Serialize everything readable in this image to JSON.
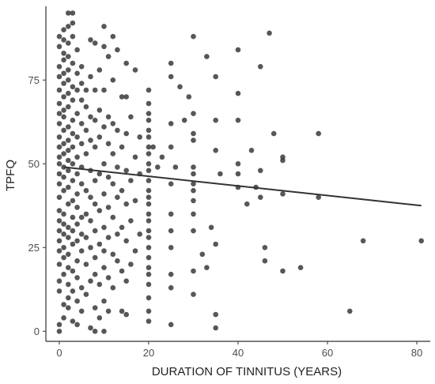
{
  "chart_data": {
    "type": "scatter",
    "xlabel": "DURATION OF TINNITUS (YEARS)",
    "ylabel": "TPFQ",
    "xlim": [
      -3,
      83
    ],
    "ylim": [
      -3,
      97
    ],
    "x_ticks": [
      0,
      20,
      40,
      60,
      80
    ],
    "y_ticks": [
      0,
      25,
      50,
      75
    ],
    "grid": false,
    "colors": {
      "point": "#3a3a3a",
      "trend_line": "#333333",
      "axis": "#333333"
    },
    "trend_line": {
      "x": [
        1,
        81
      ],
      "y": [
        49,
        37.5
      ]
    },
    "points": [
      [
        0,
        0
      ],
      [
        0,
        2
      ],
      [
        0,
        12
      ],
      [
        0,
        15
      ],
      [
        0,
        20
      ],
      [
        0,
        24
      ],
      [
        0,
        27
      ],
      [
        0,
        30
      ],
      [
        0,
        33
      ],
      [
        0,
        36
      ],
      [
        0,
        40
      ],
      [
        0,
        44
      ],
      [
        0,
        47
      ],
      [
        0,
        50
      ],
      [
        0,
        52
      ],
      [
        0,
        55
      ],
      [
        0,
        58
      ],
      [
        0,
        62
      ],
      [
        0,
        65
      ],
      [
        0,
        68
      ],
      [
        0,
        72
      ],
      [
        0,
        76
      ],
      [
        0,
        79
      ],
      [
        0,
        85
      ],
      [
        0,
        88
      ],
      [
        1,
        4
      ],
      [
        1,
        8
      ],
      [
        1,
        17
      ],
      [
        1,
        22
      ],
      [
        1,
        25
      ],
      [
        1,
        29
      ],
      [
        1,
        32
      ],
      [
        1,
        35
      ],
      [
        1,
        42
      ],
      [
        1,
        46
      ],
      [
        1,
        49
      ],
      [
        1,
        53
      ],
      [
        1,
        56
      ],
      [
        1,
        60
      ],
      [
        1,
        64
      ],
      [
        1,
        66
      ],
      [
        1,
        70
      ],
      [
        1,
        74
      ],
      [
        1,
        77
      ],
      [
        1,
        81
      ],
      [
        1,
        83
      ],
      [
        1,
        87
      ],
      [
        1,
        90
      ],
      [
        2,
        7
      ],
      [
        2,
        10
      ],
      [
        2,
        14
      ],
      [
        2,
        19
      ],
      [
        2,
        23
      ],
      [
        2,
        28
      ],
      [
        2,
        31
      ],
      [
        2,
        38
      ],
      [
        2,
        43
      ],
      [
        2,
        48
      ],
      [
        2,
        51
      ],
      [
        2,
        54
      ],
      [
        2,
        57
      ],
      [
        2,
        61
      ],
      [
        2,
        67
      ],
      [
        2,
        71
      ],
      [
        2,
        75
      ],
      [
        2,
        78
      ],
      [
        2,
        82
      ],
      [
        2,
        86
      ],
      [
        2,
        91
      ],
      [
        2,
        95
      ],
      [
        3,
        3
      ],
      [
        3,
        12
      ],
      [
        3,
        18
      ],
      [
        3,
        26
      ],
      [
        3,
        30
      ],
      [
        3,
        34
      ],
      [
        3,
        39
      ],
      [
        3,
        45
      ],
      [
        3,
        50
      ],
      [
        3,
        55
      ],
      [
        3,
        59
      ],
      [
        3,
        63
      ],
      [
        3,
        69
      ],
      [
        3,
        73
      ],
      [
        3,
        80
      ],
      [
        3,
        88
      ],
      [
        3,
        92
      ],
      [
        3,
        95
      ],
      [
        4,
        2
      ],
      [
        4,
        9
      ],
      [
        4,
        16
      ],
      [
        4,
        21
      ],
      [
        4,
        27
      ],
      [
        4,
        32
      ],
      [
        4,
        37
      ],
      [
        4,
        41
      ],
      [
        4,
        47
      ],
      [
        4,
        52
      ],
      [
        4,
        58
      ],
      [
        4,
        65
      ],
      [
        4,
        72
      ],
      [
        4,
        77
      ],
      [
        4,
        84
      ],
      [
        5,
        6
      ],
      [
        5,
        13
      ],
      [
        5,
        24
      ],
      [
        5,
        29
      ],
      [
        5,
        34
      ],
      [
        5,
        44
      ],
      [
        5,
        49
      ],
      [
        5,
        56
      ],
      [
        5,
        62
      ],
      [
        5,
        69
      ],
      [
        5,
        74
      ],
      [
        5,
        79
      ],
      [
        6,
        11
      ],
      [
        6,
        20
      ],
      [
        6,
        28
      ],
      [
        6,
        35
      ],
      [
        6,
        42
      ],
      [
        6,
        53
      ],
      [
        6,
        60
      ],
      [
        6,
        67
      ],
      [
        6,
        72
      ],
      [
        7,
        1
      ],
      [
        7,
        15
      ],
      [
        7,
        25
      ],
      [
        7,
        33
      ],
      [
        7,
        40
      ],
      [
        7,
        48
      ],
      [
        7,
        57
      ],
      [
        7,
        64
      ],
      [
        7,
        76
      ],
      [
        7,
        87
      ],
      [
        8,
        0
      ],
      [
        8,
        7
      ],
      [
        8,
        17
      ],
      [
        8,
        22
      ],
      [
        8,
        30
      ],
      [
        8,
        38
      ],
      [
        8,
        45
      ],
      [
        8,
        55
      ],
      [
        8,
        63
      ],
      [
        8,
        72
      ],
      [
        8,
        86
      ],
      [
        9,
        4
      ],
      [
        9,
        14
      ],
      [
        9,
        26
      ],
      [
        9,
        36
      ],
      [
        9,
        47
      ],
      [
        9,
        58
      ],
      [
        9,
        66
      ],
      [
        9,
        78
      ],
      [
        10,
        0
      ],
      [
        10,
        9
      ],
      [
        10,
        19
      ],
      [
        10,
        24
      ],
      [
        10,
        31
      ],
      [
        10,
        41
      ],
      [
        10,
        50
      ],
      [
        10,
        61
      ],
      [
        10,
        72
      ],
      [
        10,
        85
      ],
      [
        10,
        91
      ],
      [
        11,
        6
      ],
      [
        11,
        16
      ],
      [
        11,
        28
      ],
      [
        11,
        37
      ],
      [
        11,
        46
      ],
      [
        11,
        56
      ],
      [
        11,
        64
      ],
      [
        11,
        82
      ],
      [
        12,
        13
      ],
      [
        12,
        23
      ],
      [
        12,
        34
      ],
      [
        12,
        44
      ],
      [
        12,
        53
      ],
      [
        12,
        62
      ],
      [
        12,
        75
      ],
      [
        12,
        88
      ],
      [
        13,
        21
      ],
      [
        13,
        29
      ],
      [
        13,
        40
      ],
      [
        13,
        49
      ],
      [
        13,
        60
      ],
      [
        13,
        84
      ],
      [
        14,
        6
      ],
      [
        14,
        18
      ],
      [
        14,
        31
      ],
      [
        14,
        42
      ],
      [
        14,
        55
      ],
      [
        14,
        70
      ],
      [
        15,
        5
      ],
      [
        15,
        15
      ],
      [
        15,
        27
      ],
      [
        15,
        38
      ],
      [
        15,
        48
      ],
      [
        15,
        59
      ],
      [
        15,
        70
      ],
      [
        15,
        80
      ],
      [
        16,
        20
      ],
      [
        16,
        33
      ],
      [
        16,
        45
      ],
      [
        16,
        64
      ],
      [
        17,
        24
      ],
      [
        17,
        39
      ],
      [
        17,
        52
      ],
      [
        17,
        78
      ],
      [
        18,
        29
      ],
      [
        18,
        47
      ],
      [
        18,
        58
      ],
      [
        20,
        3
      ],
      [
        20,
        6
      ],
      [
        20,
        10
      ],
      [
        20,
        14
      ],
      [
        20,
        17
      ],
      [
        20,
        19
      ],
      [
        20,
        22
      ],
      [
        20,
        25
      ],
      [
        20,
        28
      ],
      [
        20,
        30
      ],
      [
        20,
        33
      ],
      [
        20,
        35
      ],
      [
        20,
        38
      ],
      [
        20,
        40
      ],
      [
        20,
        42
      ],
      [
        20,
        45
      ],
      [
        20,
        48
      ],
      [
        20,
        50
      ],
      [
        20,
        53
      ],
      [
        20,
        55
      ],
      [
        20,
        58
      ],
      [
        20,
        60
      ],
      [
        20,
        63
      ],
      [
        20,
        65
      ],
      [
        20,
        68
      ],
      [
        20,
        72
      ],
      [
        21,
        55
      ],
      [
        22,
        49
      ],
      [
        23,
        52
      ],
      [
        25,
        2
      ],
      [
        25,
        13
      ],
      [
        25,
        17
      ],
      [
        25,
        25
      ],
      [
        25,
        30
      ],
      [
        25,
        35
      ],
      [
        25,
        44
      ],
      [
        25,
        55
      ],
      [
        25,
        62
      ],
      [
        25,
        76
      ],
      [
        25,
        80
      ],
      [
        26,
        49
      ],
      [
        27,
        73
      ],
      [
        28,
        63
      ],
      [
        29,
        70
      ],
      [
        30,
        11
      ],
      [
        30,
        18
      ],
      [
        30,
        30
      ],
      [
        30,
        35
      ],
      [
        30,
        39
      ],
      [
        30,
        42
      ],
      [
        30,
        44
      ],
      [
        30,
        47
      ],
      [
        30,
        49
      ],
      [
        30,
        57
      ],
      [
        30,
        59
      ],
      [
        30,
        65
      ],
      [
        30,
        88
      ],
      [
        32,
        23
      ],
      [
        33,
        19
      ],
      [
        33,
        82
      ],
      [
        34,
        31
      ],
      [
        35,
        1
      ],
      [
        35,
        5
      ],
      [
        35,
        26
      ],
      [
        35,
        54
      ],
      [
        35,
        63
      ],
      [
        35,
        76
      ],
      [
        36,
        47
      ],
      [
        40,
        43
      ],
      [
        40,
        47
      ],
      [
        40,
        50
      ],
      [
        40,
        63
      ],
      [
        40,
        71
      ],
      [
        40,
        84
      ],
      [
        42,
        38
      ],
      [
        43,
        54
      ],
      [
        44,
        43
      ],
      [
        45,
        40
      ],
      [
        45,
        79
      ],
      [
        45,
        48
      ],
      [
        46,
        21
      ],
      [
        46,
        25
      ],
      [
        47,
        89
      ],
      [
        48,
        59
      ],
      [
        50,
        18
      ],
      [
        50,
        41
      ],
      [
        50,
        51
      ],
      [
        50,
        52
      ],
      [
        54,
        19
      ],
      [
        58,
        40
      ],
      [
        58,
        59
      ],
      [
        65,
        6
      ],
      [
        68,
        27
      ],
      [
        81,
        27
      ]
    ]
  }
}
